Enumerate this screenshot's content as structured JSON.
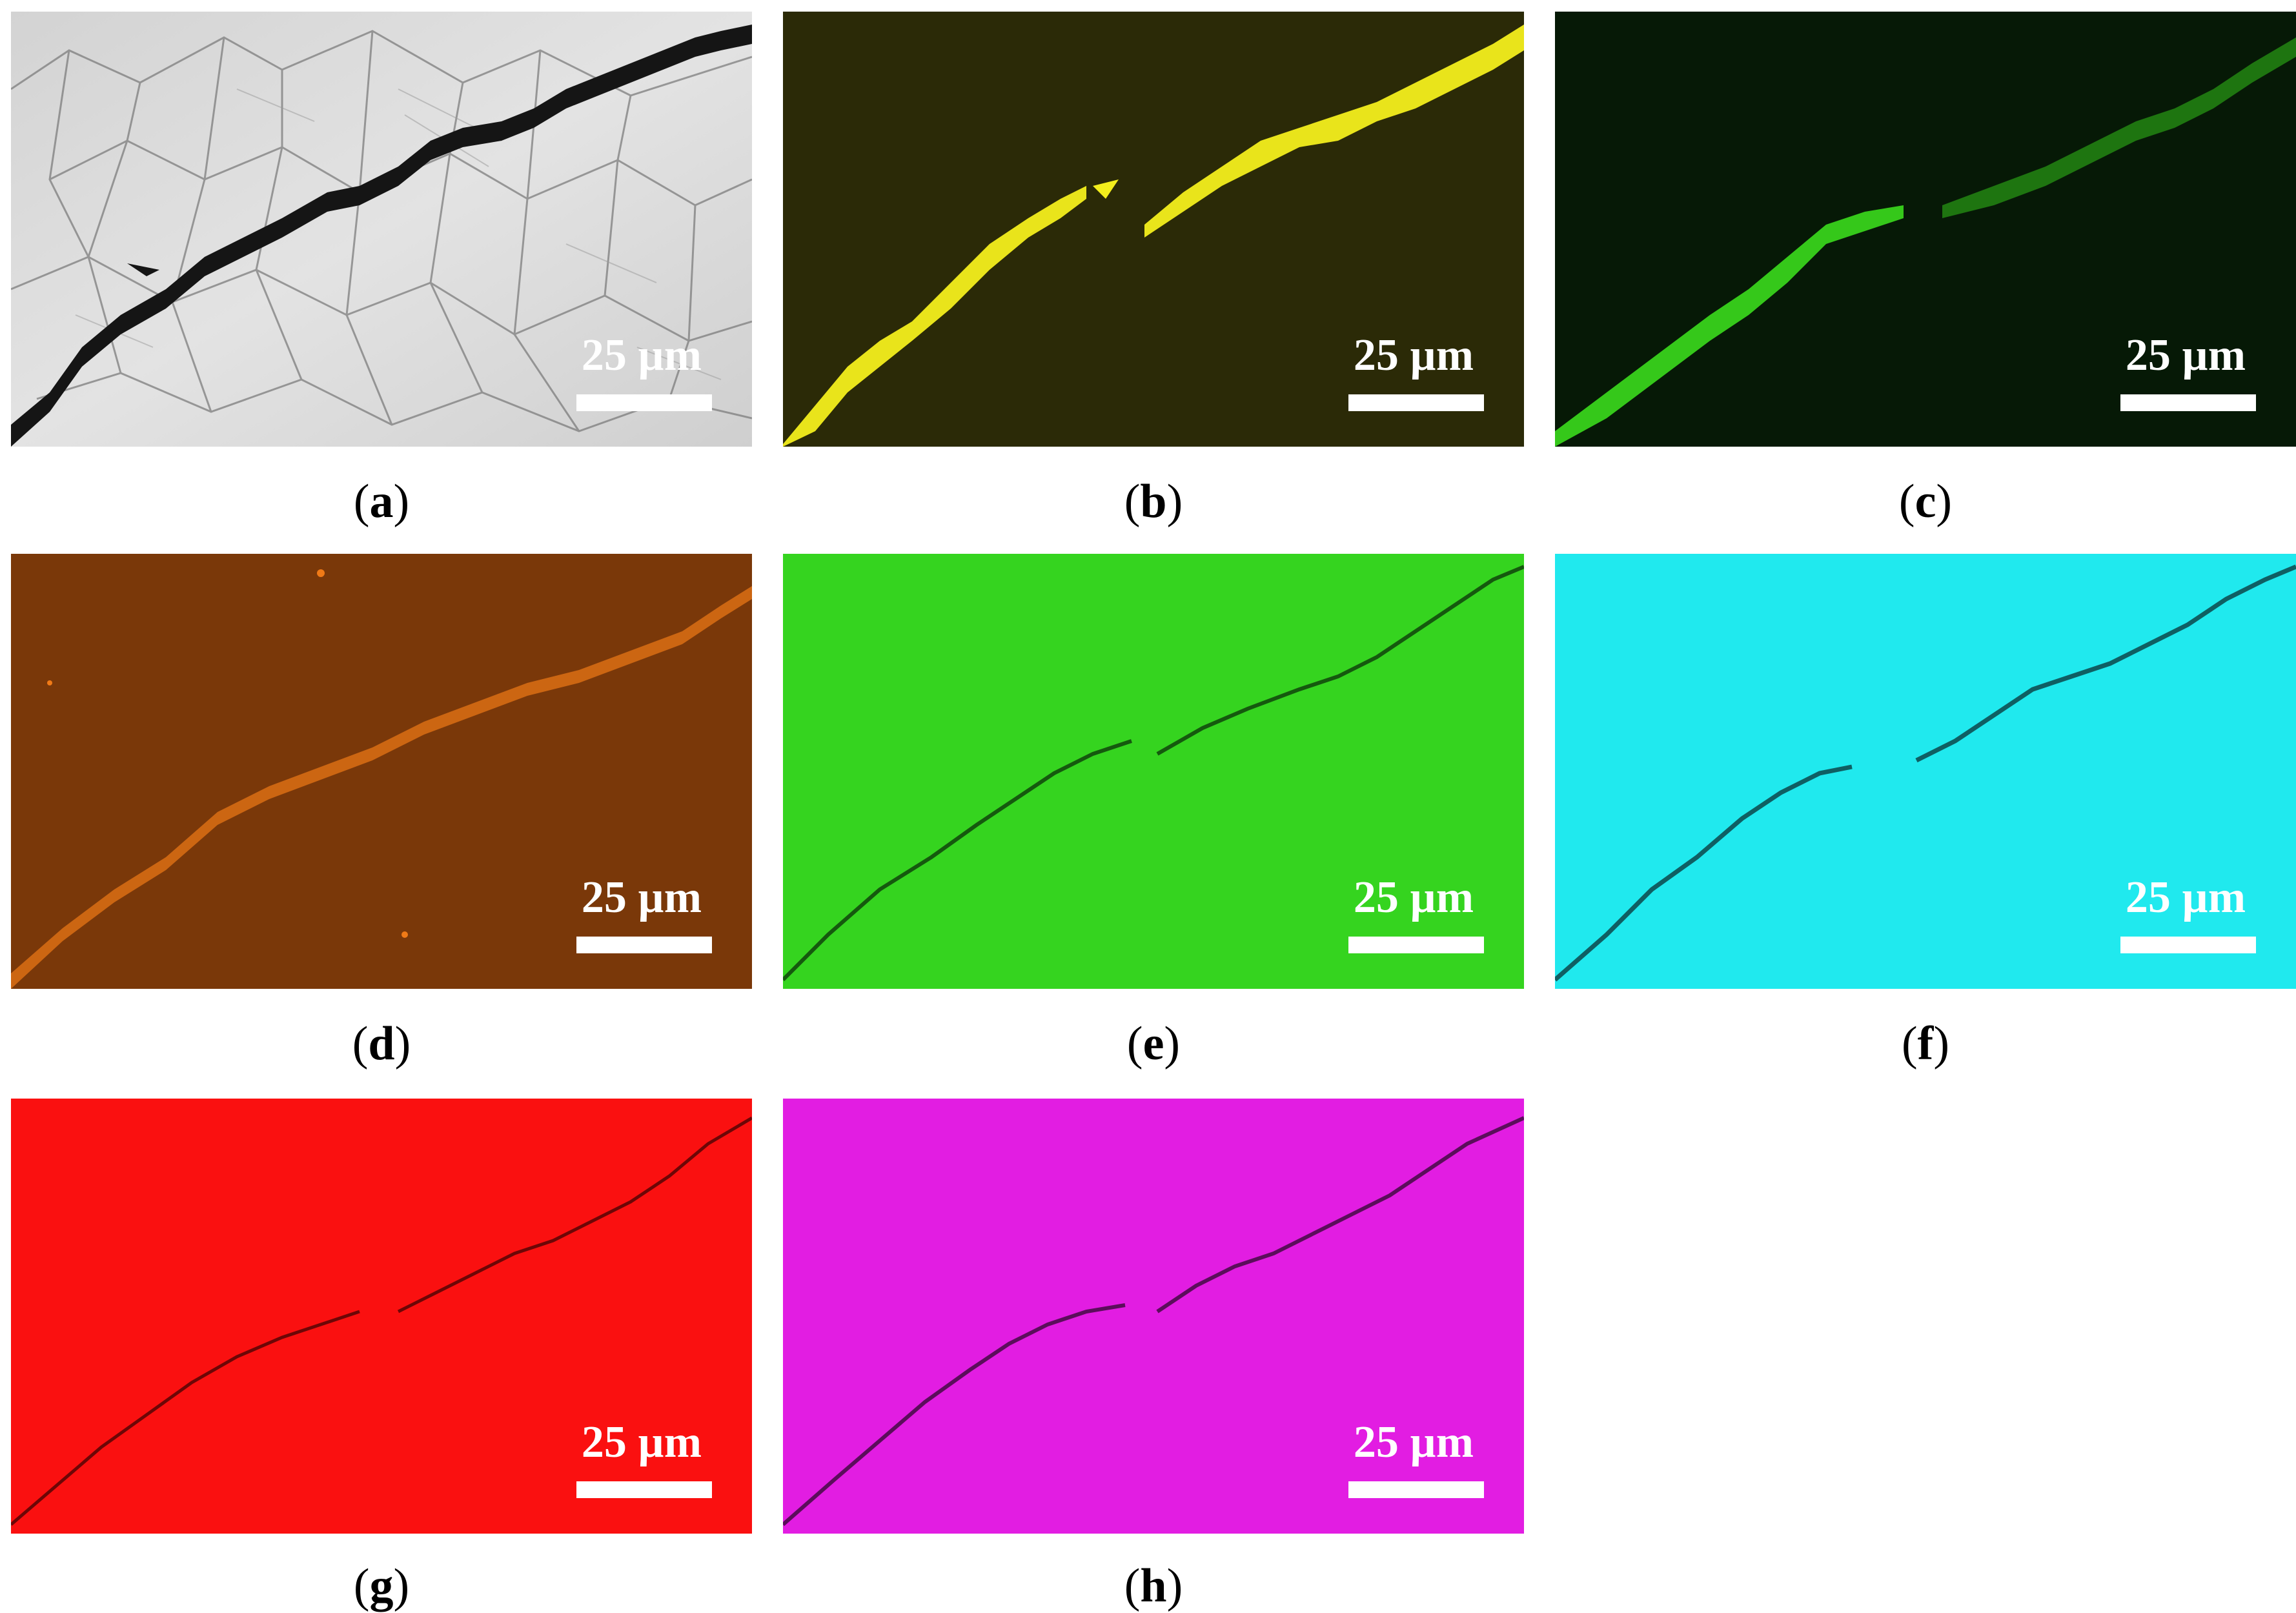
{
  "panels": [
    {
      "id": "a",
      "label": "a",
      "scale_bar": "25 µm",
      "background": "#d8d8d8",
      "signal_color": "#151515",
      "mode": "optical-micrograph-crack"
    },
    {
      "id": "b",
      "label": "b",
      "scale_bar": "25 µm",
      "background": "#2a2a06",
      "signal_color": "#f3ee1c",
      "mode": "element-enriched-along-crack"
    },
    {
      "id": "c",
      "label": "c",
      "scale_bar": "25 µm",
      "background": "#071a07",
      "signal_color": "#3ee81f",
      "mode": "element-enriched-along-crack"
    },
    {
      "id": "d",
      "label": "d",
      "scale_bar": "25 µm",
      "background": "#7a3808",
      "signal_color": "#f77e18",
      "mode": "element-enriched-along-crack"
    },
    {
      "id": "e",
      "label": "e",
      "scale_bar": "25 µm",
      "background": "#33d41e",
      "signal_color": "#0e3a0a",
      "mode": "element-depleted-along-crack"
    },
    {
      "id": "f",
      "label": "f",
      "scale_bar": "25 µm",
      "background": "#1ee9ee",
      "signal_color": "#0b3c40",
      "mode": "element-depleted-along-crack"
    },
    {
      "id": "g",
      "label": "g",
      "scale_bar": "25 µm",
      "background": "#fb0f0f",
      "signal_color": "#4a0404",
      "mode": "element-depleted-along-crack"
    },
    {
      "id": "h",
      "label": "h",
      "scale_bar": "25 µm",
      "background": "#e31de3",
      "signal_color": "#3a0a3a",
      "mode": "element-depleted-along-crack"
    }
  ],
  "colors": {
    "page_background": "#ffffff",
    "caption_text": "#000000",
    "scale_bar": "#ffffff"
  }
}
